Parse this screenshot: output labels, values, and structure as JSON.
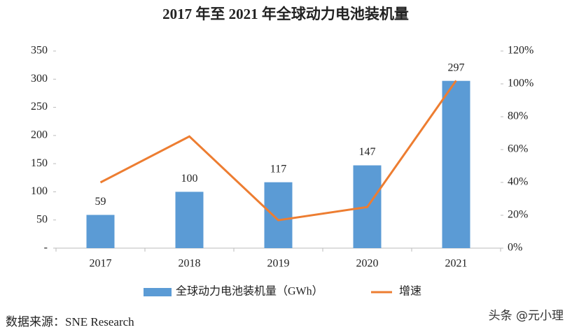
{
  "chart_data": {
    "type": "bar-line",
    "title": "2017 年至 2021 年全球动力电池装机量",
    "categories": [
      "2017",
      "2018",
      "2019",
      "2020",
      "2021"
    ],
    "series": [
      {
        "name": "全球动力电池装机量（GWh）",
        "color": "#5b9bd5",
        "type": "bar",
        "values": [
          59,
          100,
          117,
          147,
          297
        ]
      },
      {
        "name": "增速",
        "color": "#ed7d31",
        "type": "line",
        "axis": "y2",
        "values": [
          40,
          68,
          17,
          25,
          102
        ]
      }
    ],
    "ylim": [
      0,
      350
    ],
    "yticks": [
      {
        "value": 0,
        "label": "-"
      },
      50,
      100,
      150,
      200,
      250,
      300,
      350
    ],
    "y2lim": [
      0,
      120
    ],
    "y2ticks": [
      {
        "value": 0,
        "label": "0%"
      },
      {
        "value": 20,
        "label": "20%"
      },
      {
        "value": 40,
        "label": "40%"
      },
      {
        "value": 60,
        "label": "60%"
      },
      {
        "value": 80,
        "label": "80%"
      },
      {
        "value": 100,
        "label": "100%"
      },
      {
        "value": 120,
        "label": "120%"
      }
    ],
    "grid": false,
    "legend": "bottom",
    "source": "数据来源：SNE Research",
    "watermark": "头条 @元小理"
  }
}
